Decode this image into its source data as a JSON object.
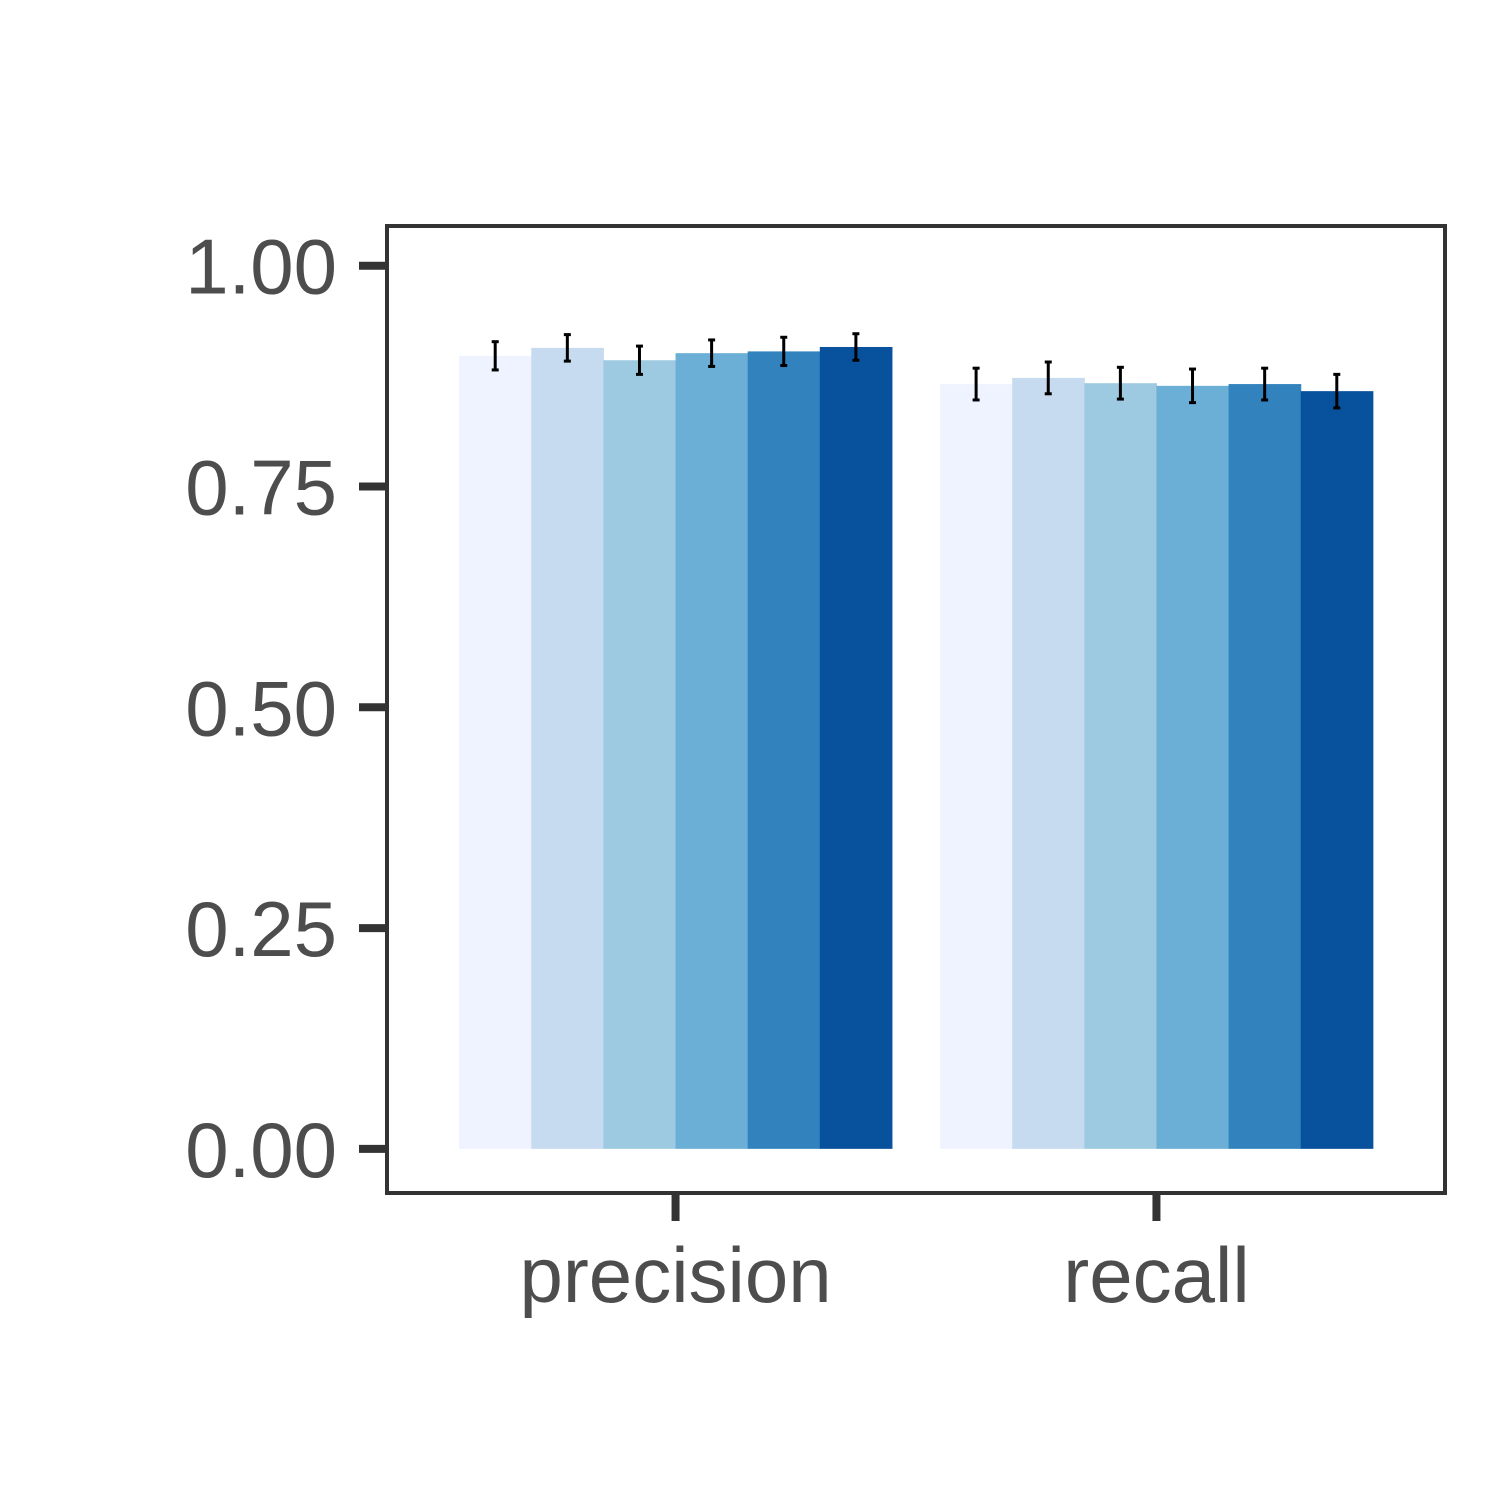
{
  "chart_data": {
    "type": "bar",
    "categories": [
      "precision",
      "recall"
    ],
    "series": [
      {
        "color": "#eff3ff",
        "values": [
          0.898,
          0.866
        ],
        "errors": [
          0.016,
          0.018
        ]
      },
      {
        "color": "#c6dbef",
        "values": [
          0.907,
          0.873
        ],
        "errors": [
          0.015,
          0.018
        ]
      },
      {
        "color": "#9ecae1",
        "values": [
          0.893,
          0.867
        ],
        "errors": [
          0.016,
          0.018
        ]
      },
      {
        "color": "#6baed6",
        "values": [
          0.901,
          0.864
        ],
        "errors": [
          0.015,
          0.019
        ]
      },
      {
        "color": "#3182bd",
        "values": [
          0.903,
          0.866
        ],
        "errors": [
          0.016,
          0.018
        ]
      },
      {
        "color": "#08519c",
        "values": [
          0.908,
          0.858
        ],
        "errors": [
          0.015,
          0.019
        ]
      }
    ],
    "ylim": [
      -0.05,
      1.045
    ],
    "yticks": [
      0,
      0.25,
      0.5,
      0.75,
      1
    ],
    "ytick_labels": [
      "0.00",
      "0.25",
      "0.50",
      "0.75",
      "1.00"
    ],
    "grid": false,
    "legend": "none"
  }
}
